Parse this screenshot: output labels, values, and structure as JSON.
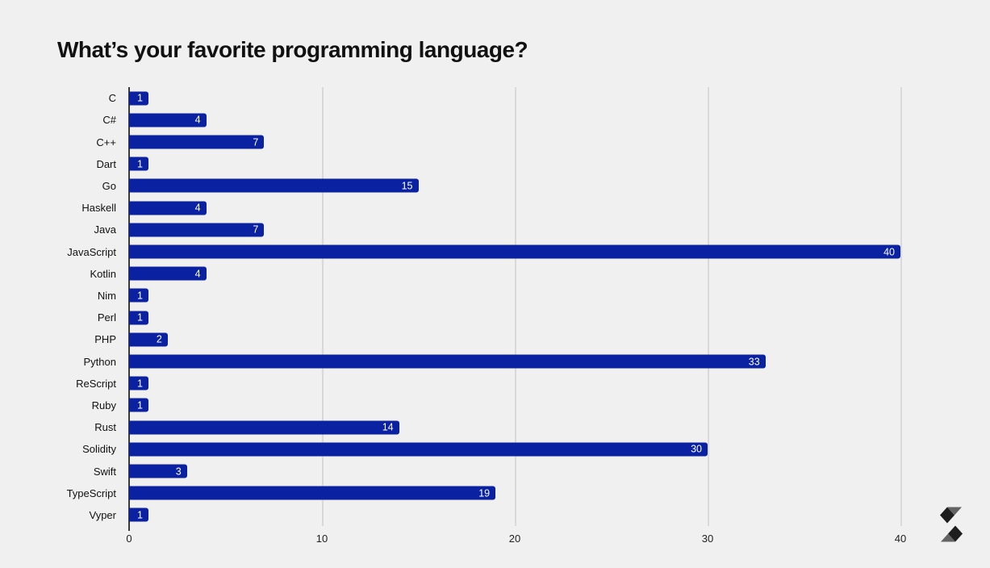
{
  "chart_data": {
    "type": "bar",
    "orientation": "horizontal",
    "title": "What’s your favorite programming language?",
    "categories": [
      "C",
      "C#",
      "C++",
      "Dart",
      "Go",
      "Haskell",
      "Java",
      "JavaScript",
      "Kotlin",
      "Nim",
      "Perl",
      "PHP",
      "Python",
      "ReScript",
      "Ruby",
      "Rust",
      "Solidity",
      "Swift",
      "TypeScript",
      "Vyper"
    ],
    "values": [
      1,
      4,
      7,
      1,
      15,
      4,
      7,
      40,
      4,
      1,
      1,
      2,
      33,
      1,
      1,
      14,
      30,
      3,
      19,
      1
    ],
    "xlabel": "",
    "ylabel": "",
    "xlim": [
      0,
      40
    ],
    "xticks": [
      0,
      10,
      20,
      30,
      40
    ],
    "grid": "vertical",
    "legend": "none",
    "bar_color": "#0a22a2",
    "value_label_color": "#ffffff",
    "background_color": "#f0f0f1",
    "gridline_color": "#d9d9da",
    "axis_line_color": "#3a3a3a"
  },
  "branding": {
    "logo": "solidity-logo",
    "logo_color_dark": "#1e1e1e",
    "logo_color_mid": "#636363"
  }
}
